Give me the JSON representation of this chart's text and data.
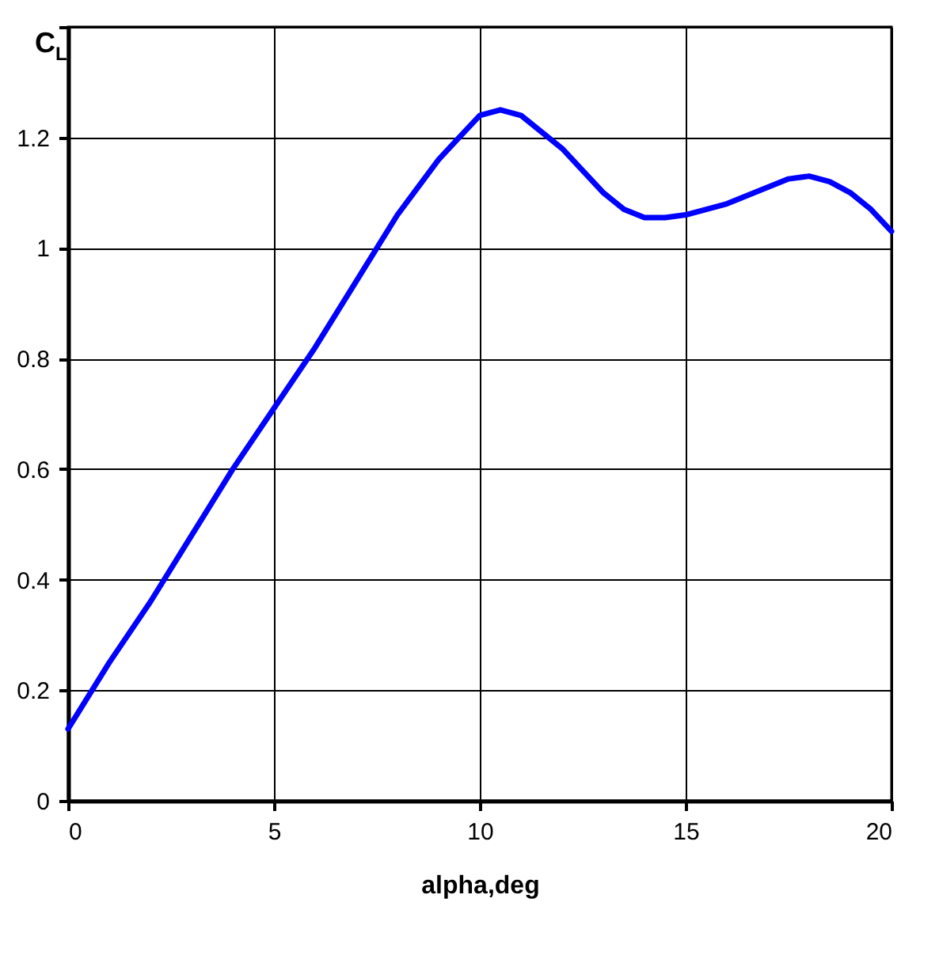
{
  "chart_data": {
    "type": "line",
    "xlabel": "alpha,deg",
    "ylabel": "C$_{L}$",
    "x": [
      0,
      1,
      2,
      3,
      4,
      5,
      6,
      7,
      8,
      9,
      9.5,
      10,
      10.5,
      11,
      11.5,
      12,
      12.5,
      13,
      13.5,
      14,
      14.5,
      15,
      15.5,
      16,
      16.5,
      17,
      17.5,
      18,
      18.5,
      19,
      19.5,
      20
    ],
    "series": [
      {
        "color": "#0000ff",
        "values": [
          0.13,
          0.25,
          0.36,
          0.48,
          0.6,
          0.71,
          0.82,
          0.94,
          1.06,
          1.16,
          1.2,
          1.24,
          1.25,
          1.24,
          1.21,
          1.18,
          1.14,
          1.1,
          1.07,
          1.055,
          1.055,
          1.06,
          1.07,
          1.08,
          1.095,
          1.11,
          1.125,
          1.13,
          1.12,
          1.1,
          1.07,
          1.03
        ]
      }
    ],
    "xlim": [
      0,
      20
    ],
    "xticks": [
      0,
      5,
      10,
      15,
      20
    ],
    "ylim": [
      0,
      1.4
    ],
    "yticks": [
      0,
      0.2,
      0.4,
      0.6,
      0.8,
      1,
      1.2,
      {
        "value": 1.4,
        "label": null
      }
    ],
    "grid": true,
    "marker": "none",
    "line_style": "solid"
  }
}
